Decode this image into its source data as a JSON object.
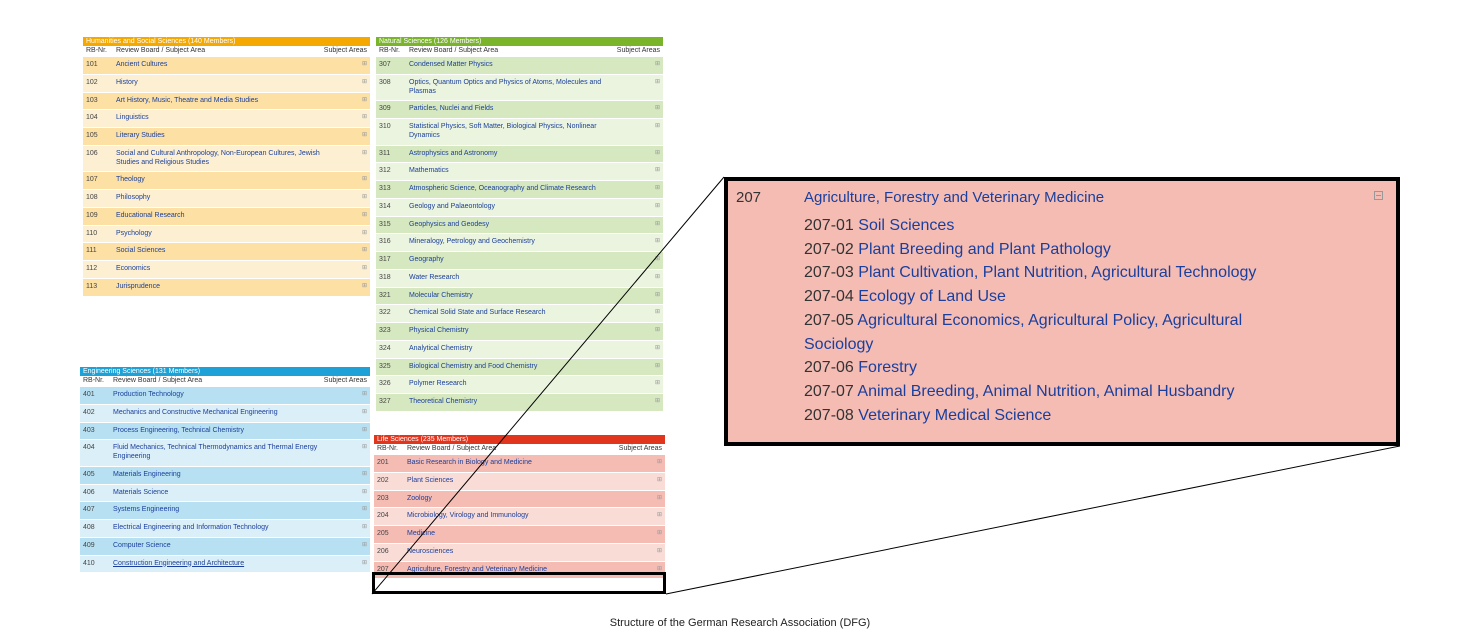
{
  "humanities": {
    "header": "Humanities and Social Sciences (140 Members)",
    "color": "#f5a800",
    "stripe": [
      "#fce0a4",
      "#fdf0d2"
    ],
    "col_nr": "RB-Nr.",
    "col_board": "Review Board / Subject Area",
    "col_areas": "Subject Areas",
    "rows": [
      {
        "nr": "101",
        "label": "Ancient Cultures"
      },
      {
        "nr": "102",
        "label": "History"
      },
      {
        "nr": "103",
        "label": "Art History, Music, Theatre and Media Studies"
      },
      {
        "nr": "104",
        "label": "Linguistics"
      },
      {
        "nr": "105",
        "label": "Literary Studies"
      },
      {
        "nr": "106",
        "label": "Social and Cultural Anthropology, Non-European Cultures, Jewish Studies and Religious Studies"
      },
      {
        "nr": "107",
        "label": "Theology"
      },
      {
        "nr": "108",
        "label": "Philosophy"
      },
      {
        "nr": "109",
        "label": "Educational Research"
      },
      {
        "nr": "110",
        "label": "Psychology"
      },
      {
        "nr": "111",
        "label": "Social Sciences"
      },
      {
        "nr": "112",
        "label": "Economics"
      },
      {
        "nr": "113",
        "label": "Jurisprudence"
      }
    ]
  },
  "natural": {
    "header": "Natural Sciences (126 Members)",
    "color": "#7ab42a",
    "stripe": [
      "#d6e8c0",
      "#ebf4df"
    ],
    "col_nr": "RB-Nr.",
    "col_board": "Review Board / Subject Area",
    "col_areas": "Subject Areas",
    "rows": [
      {
        "nr": "307",
        "label": "Condensed Matter Physics"
      },
      {
        "nr": "308",
        "label": "Optics, Quantum Optics and Physics of Atoms, Molecules and Plasmas"
      },
      {
        "nr": "309",
        "label": "Particles, Nuclei and Fields"
      },
      {
        "nr": "310",
        "label": "Statistical Physics, Soft Matter, Biological Physics, Nonlinear Dynamics"
      },
      {
        "nr": "311",
        "label": "Astrophysics and Astronomy"
      },
      {
        "nr": "312",
        "label": "Mathematics"
      },
      {
        "nr": "313",
        "label": "Atmospheric Science, Oceanography and Climate Research"
      },
      {
        "nr": "314",
        "label": "Geology and Palaeontology"
      },
      {
        "nr": "315",
        "label": "Geophysics and Geodesy"
      },
      {
        "nr": "316",
        "label": "Mineralogy, Petrology and Geochemistry"
      },
      {
        "nr": "317",
        "label": "Geography"
      },
      {
        "nr": "318",
        "label": "Water Research"
      },
      {
        "nr": "321",
        "label": "Molecular Chemistry"
      },
      {
        "nr": "322",
        "label": "Chemical Solid State and Surface Research"
      },
      {
        "nr": "323",
        "label": "Physical Chemistry"
      },
      {
        "nr": "324",
        "label": "Analytical Chemistry"
      },
      {
        "nr": "325",
        "label": "Biological Chemistry and Food Chemistry"
      },
      {
        "nr": "326",
        "label": "Polymer Research"
      },
      {
        "nr": "327",
        "label": "Theoretical Chemistry"
      }
    ]
  },
  "engineering": {
    "header": "Engineering Sciences (131 Members)",
    "color": "#1da1d6",
    "stripe": [
      "#b7e1f2",
      "#dbeff8"
    ],
    "col_nr": "RB-Nr.",
    "col_board": "Review Board / Subject Area",
    "col_areas": "Subject Areas",
    "rows": [
      {
        "nr": "401",
        "label": "Production Technology"
      },
      {
        "nr": "402",
        "label": "Mechanics and Constructive Mechanical Engineering"
      },
      {
        "nr": "403",
        "label": "Process Engineering, Technical Chemistry"
      },
      {
        "nr": "404",
        "label": "Fluid Mechanics, Technical Thermodynamics and Thermal Energy Engineering"
      },
      {
        "nr": "405",
        "label": "Materials Engineering"
      },
      {
        "nr": "406",
        "label": "Materials Science"
      },
      {
        "nr": "407",
        "label": "Systems Engineering"
      },
      {
        "nr": "408",
        "label": "Electrical Engineering and Information Technology"
      },
      {
        "nr": "409",
        "label": "Computer Science"
      },
      {
        "nr": "410",
        "label": "Construction Engineering and Architecture"
      }
    ]
  },
  "life": {
    "header": "Life Sciences (235 Members)",
    "color": "#e2351e",
    "stripe": [
      "#f5bcb4",
      "#fadcd7"
    ],
    "col_nr": "RB-Nr.",
    "col_board": "Review Board / Subject Area",
    "col_areas": "Subject Areas",
    "rows": [
      {
        "nr": "201",
        "label": "Basic Research in Biology and Medicine"
      },
      {
        "nr": "202",
        "label": "Plant Sciences"
      },
      {
        "nr": "203",
        "label": "Zoology"
      },
      {
        "nr": "204",
        "label": "Microbiology, Virology and Immunology"
      },
      {
        "nr": "205",
        "label": "Medicine"
      },
      {
        "nr": "206",
        "label": "Neurosciences"
      },
      {
        "nr": "207",
        "label": "Agriculture, Forestry and Veterinary Medicine"
      }
    ]
  },
  "zoom": {
    "nr": "207",
    "title": "Agriculture, Forestry and Veterinary Medicine",
    "subareas": [
      {
        "id": "207-01",
        "name": "Soil Sciences"
      },
      {
        "id": "207-02",
        "name": "Plant Breeding and Plant Pathology"
      },
      {
        "id": "207-03",
        "name": "Plant Cultivation, Plant Nutrition, Agricultural Technology"
      },
      {
        "id": "207-04",
        "name": "Ecology of Land Use"
      },
      {
        "id": "207-05",
        "name": "Agricultural Economics, Agricultural Policy, Agricultural Sociology"
      },
      {
        "id": "207-06",
        "name": "Forestry"
      },
      {
        "id": "207-07",
        "name": "Animal Breeding, Animal Nutrition, Animal Husbandry"
      },
      {
        "id": "207-08",
        "name": "Veterinary Medical Science"
      }
    ]
  },
  "caption": "Structure of the German Research Association (DFG)"
}
